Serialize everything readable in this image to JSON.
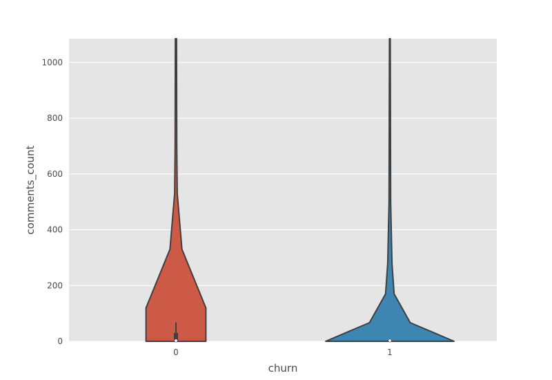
{
  "chart_data": {
    "type": "violin",
    "title": "",
    "xlabel": "churn",
    "ylabel": "comments_count",
    "categories": [
      "0",
      "1"
    ],
    "ylim": [
      0,
      1085
    ],
    "yticks": [
      0,
      200,
      400,
      600,
      800,
      1000
    ],
    "grid": true,
    "background": "#e5e5e5",
    "violins": [
      {
        "category": "0",
        "color": "#cc5a46",
        "profile": [
          {
            "y": 0,
            "half_width": 0.14
          },
          {
            "y": 120,
            "half_width": 0.14
          },
          {
            "y": 330,
            "half_width": 0.028
          },
          {
            "y": 530,
            "half_width": 0.006
          },
          {
            "y": 700,
            "half_width": 0.004
          },
          {
            "y": 1085,
            "half_width": 0.003
          }
        ],
        "inner_box": {
          "q1": 5,
          "q3": 30,
          "whisker_high": 68
        }
      },
      {
        "category": "1",
        "color": "#3f85b2",
        "profile": [
          {
            "y": 0,
            "half_width": 0.3
          },
          {
            "y": 67,
            "half_width": 0.095
          },
          {
            "y": 170,
            "half_width": 0.02
          },
          {
            "y": 280,
            "half_width": 0.01
          },
          {
            "y": 500,
            "half_width": 0.004
          },
          {
            "y": 1085,
            "half_width": 0.002
          }
        ],
        "inner_box": {
          "q1": 0,
          "q3": 3,
          "whisker_high": 6
        }
      }
    ]
  }
}
